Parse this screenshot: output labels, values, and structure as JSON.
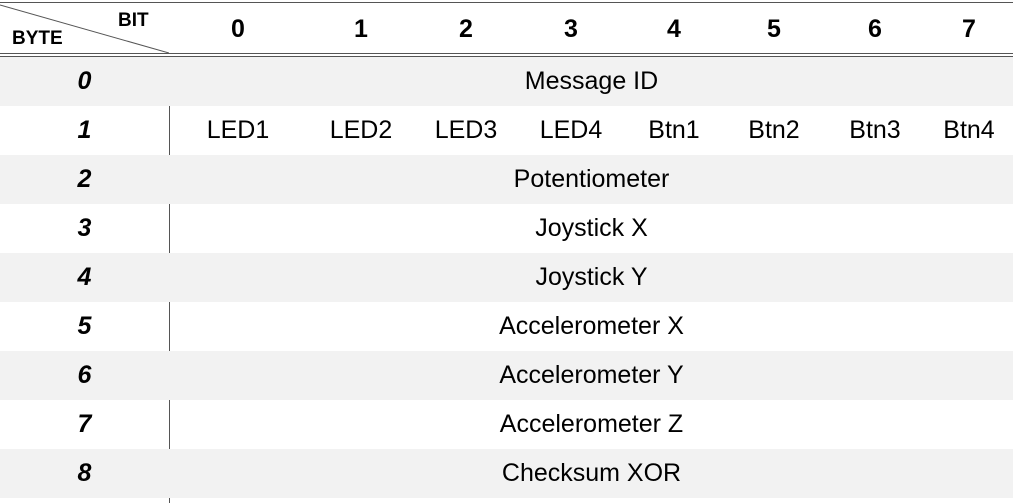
{
  "header": {
    "row_label": "BYTE",
    "col_label": "BIT",
    "bits": [
      "0",
      "1",
      "2",
      "3",
      "4",
      "5",
      "6",
      "7"
    ]
  },
  "rows": [
    {
      "byte": "0",
      "label": "Message ID"
    },
    {
      "byte": "1",
      "bits": [
        "LED1",
        "LED2",
        "LED3",
        "LED4",
        "Btn1",
        "Btn2",
        "Btn3",
        "Btn4"
      ]
    },
    {
      "byte": "2",
      "label": "Potentiometer"
    },
    {
      "byte": "3",
      "label": "Joystick X"
    },
    {
      "byte": "4",
      "label": "Joystick Y"
    },
    {
      "byte": "5",
      "label": "Accelerometer X"
    },
    {
      "byte": "6",
      "label": "Accelerometer Y"
    },
    {
      "byte": "7",
      "label": "Accelerometer Z"
    },
    {
      "byte": "8",
      "label": "Checksum XOR"
    }
  ],
  "colors": {
    "shade": "#f2f2f2",
    "rule": "#555555",
    "text": "#000000"
  }
}
